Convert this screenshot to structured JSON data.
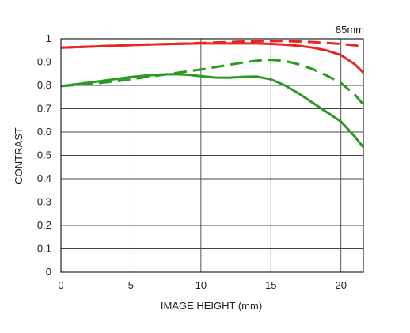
{
  "chart_data": {
    "type": "line",
    "title": "85mm",
    "xlabel": "IMAGE HEIGHT (mm)",
    "ylabel": "CONTRAST",
    "xlim": [
      0,
      21.6
    ],
    "ylim": [
      0,
      1
    ],
    "xticks": [
      0,
      5,
      10,
      15,
      20
    ],
    "yticks": [
      0,
      0.1,
      0.2,
      0.3,
      0.4,
      0.5,
      0.6,
      0.7,
      0.8,
      0.9,
      1
    ],
    "ytick_labels": [
      "0",
      "0.1",
      "0.2",
      "0.3",
      "0.4",
      "0.5",
      "0.6",
      "0.7",
      "0.8",
      "0.9",
      "1"
    ],
    "grid": true,
    "series": [
      {
        "color": "#e8261f",
        "dash": "solid",
        "x": [
          0,
          2,
          4,
          6,
          8,
          10,
          12,
          14,
          15,
          16,
          17,
          18,
          19,
          20,
          21,
          21.6
        ],
        "y": [
          0.962,
          0.966,
          0.971,
          0.975,
          0.978,
          0.98,
          0.98,
          0.98,
          0.978,
          0.975,
          0.97,
          0.962,
          0.95,
          0.93,
          0.89,
          0.855
        ]
      },
      {
        "color": "#e8261f",
        "dash": "dashed",
        "x": [
          0,
          2,
          4,
          6,
          8,
          10,
          12,
          14,
          15,
          16,
          17,
          18,
          19,
          20,
          21,
          21.6
        ],
        "y": [
          0.962,
          0.966,
          0.971,
          0.975,
          0.978,
          0.982,
          0.986,
          0.99,
          0.99,
          0.99,
          0.988,
          0.986,
          0.982,
          0.978,
          0.972,
          0.965
        ]
      },
      {
        "color": "#2a9a22",
        "dash": "solid",
        "x": [
          0,
          1,
          2,
          3,
          4,
          5,
          6,
          7,
          8,
          9,
          10,
          11,
          12,
          13,
          14,
          15,
          16,
          17,
          18,
          19,
          20,
          21,
          21.6
        ],
        "y": [
          0.797,
          0.804,
          0.812,
          0.82,
          0.828,
          0.836,
          0.842,
          0.846,
          0.848,
          0.846,
          0.84,
          0.834,
          0.833,
          0.837,
          0.838,
          0.826,
          0.8,
          0.765,
          0.725,
          0.685,
          0.645,
          0.58,
          0.535
        ]
      },
      {
        "color": "#2a9a22",
        "dash": "dashed",
        "x": [
          0,
          2,
          4,
          6,
          8,
          10,
          12,
          13,
          14,
          15,
          16,
          17,
          18,
          19,
          20,
          21,
          21.6
        ],
        "y": [
          0.797,
          0.806,
          0.818,
          0.835,
          0.852,
          0.868,
          0.888,
          0.898,
          0.906,
          0.91,
          0.905,
          0.89,
          0.87,
          0.842,
          0.81,
          0.76,
          0.718
        ]
      }
    ]
  }
}
